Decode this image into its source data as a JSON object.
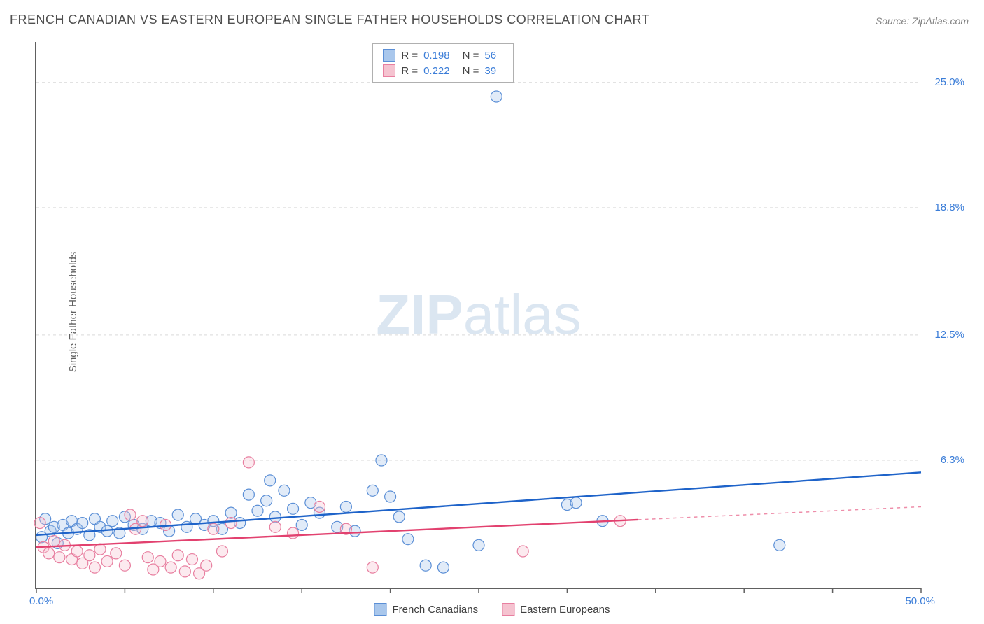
{
  "title": "FRENCH CANADIAN VS EASTERN EUROPEAN SINGLE FATHER HOUSEHOLDS CORRELATION CHART",
  "source_prefix": "Source: ",
  "source_link": "ZipAtlas.com",
  "y_axis_label": "Single Father Households",
  "watermark_bold": "ZIP",
  "watermark_light": "atlas",
  "chart": {
    "type": "scatter",
    "background_color": "#ffffff",
    "grid_color": "#d9d9d9",
    "axis_color": "#606060",
    "tick_color": "#606060",
    "label_color": "#3b7dd8",
    "xlim": [
      0,
      50
    ],
    "ylim": [
      0,
      27
    ],
    "x_tick_step": 5,
    "y_ticks": [
      6.3,
      12.5,
      18.8,
      25.0
    ],
    "x_labels": {
      "min": "0.0%",
      "max": "50.0%"
    },
    "y_labels": [
      "6.3%",
      "12.5%",
      "18.8%",
      "25.0%"
    ],
    "marker_radius": 8,
    "marker_fill_opacity": 0.35,
    "marker_stroke_width": 1.2,
    "trend_line_width": 2.4,
    "series": [
      {
        "name": "French Canadians",
        "color_fill": "#a9c7ec",
        "color_stroke": "#5b8fd6",
        "trend_color": "#1e63c9",
        "trend": {
          "x1": 0,
          "y1": 2.6,
          "x2": 50,
          "y2": 5.7,
          "solid_until_x": 50
        },
        "stats": {
          "R_label": "R  =",
          "R": "0.198",
          "N_label": "N  =",
          "N": "56"
        },
        "points": [
          {
            "x": 0.3,
            "y": 2.5
          },
          {
            "x": 0.5,
            "y": 3.4
          },
          {
            "x": 0.8,
            "y": 2.8
          },
          {
            "x": 1.0,
            "y": 3.0
          },
          {
            "x": 1.2,
            "y": 2.2
          },
          {
            "x": 1.5,
            "y": 3.1
          },
          {
            "x": 1.8,
            "y": 2.7
          },
          {
            "x": 2.0,
            "y": 3.3
          },
          {
            "x": 2.3,
            "y": 2.9
          },
          {
            "x": 2.6,
            "y": 3.2
          },
          {
            "x": 3.0,
            "y": 2.6
          },
          {
            "x": 3.3,
            "y": 3.4
          },
          {
            "x": 3.6,
            "y": 3.0
          },
          {
            "x": 4.0,
            "y": 2.8
          },
          {
            "x": 4.3,
            "y": 3.3
          },
          {
            "x": 4.7,
            "y": 2.7
          },
          {
            "x": 5.0,
            "y": 3.5
          },
          {
            "x": 5.5,
            "y": 3.1
          },
          {
            "x": 6.0,
            "y": 2.9
          },
          {
            "x": 6.5,
            "y": 3.3
          },
          {
            "x": 7.0,
            "y": 3.2
          },
          {
            "x": 7.5,
            "y": 2.8
          },
          {
            "x": 8.0,
            "y": 3.6
          },
          {
            "x": 8.5,
            "y": 3.0
          },
          {
            "x": 9.0,
            "y": 3.4
          },
          {
            "x": 9.5,
            "y": 3.1
          },
          {
            "x": 10.0,
            "y": 3.3
          },
          {
            "x": 10.5,
            "y": 2.9
          },
          {
            "x": 11.0,
            "y": 3.7
          },
          {
            "x": 11.5,
            "y": 3.2
          },
          {
            "x": 12.0,
            "y": 4.6
          },
          {
            "x": 12.5,
            "y": 3.8
          },
          {
            "x": 13.0,
            "y": 4.3
          },
          {
            "x": 13.2,
            "y": 5.3
          },
          {
            "x": 13.5,
            "y": 3.5
          },
          {
            "x": 14.0,
            "y": 4.8
          },
          {
            "x": 14.5,
            "y": 3.9
          },
          {
            "x": 15.0,
            "y": 3.1
          },
          {
            "x": 15.5,
            "y": 4.2
          },
          {
            "x": 16.0,
            "y": 3.7
          },
          {
            "x": 17.0,
            "y": 3.0
          },
          {
            "x": 17.5,
            "y": 4.0
          },
          {
            "x": 18.0,
            "y": 2.8
          },
          {
            "x": 19.0,
            "y": 4.8
          },
          {
            "x": 19.5,
            "y": 6.3
          },
          {
            "x": 20.0,
            "y": 4.5
          },
          {
            "x": 20.5,
            "y": 3.5
          },
          {
            "x": 21.0,
            "y": 2.4
          },
          {
            "x": 22.0,
            "y": 1.1
          },
          {
            "x": 23.0,
            "y": 1.0
          },
          {
            "x": 25.0,
            "y": 2.1
          },
          {
            "x": 26.0,
            "y": 24.3
          },
          {
            "x": 30.0,
            "y": 4.1
          },
          {
            "x": 30.5,
            "y": 4.2
          },
          {
            "x": 42.0,
            "y": 2.1
          },
          {
            "x": 32.0,
            "y": 3.3
          }
        ]
      },
      {
        "name": "Eastern Europeans",
        "color_fill": "#f5c3d0",
        "color_stroke": "#e87fa0",
        "trend_color": "#e2416f",
        "trend": {
          "x1": 0,
          "y1": 2.0,
          "x2": 50,
          "y2": 4.0,
          "solid_until_x": 34
        },
        "stats": {
          "R_label": "R  =",
          "R": "0.222",
          "N_label": "N  =",
          "N": "39"
        },
        "points": [
          {
            "x": 0.2,
            "y": 3.2
          },
          {
            "x": 0.4,
            "y": 2.0
          },
          {
            "x": 0.7,
            "y": 1.7
          },
          {
            "x": 1.0,
            "y": 2.3
          },
          {
            "x": 1.3,
            "y": 1.5
          },
          {
            "x": 1.6,
            "y": 2.1
          },
          {
            "x": 2.0,
            "y": 1.4
          },
          {
            "x": 2.3,
            "y": 1.8
          },
          {
            "x": 2.6,
            "y": 1.2
          },
          {
            "x": 3.0,
            "y": 1.6
          },
          {
            "x": 3.3,
            "y": 1.0
          },
          {
            "x": 3.6,
            "y": 1.9
          },
          {
            "x": 4.0,
            "y": 1.3
          },
          {
            "x": 4.5,
            "y": 1.7
          },
          {
            "x": 5.0,
            "y": 1.1
          },
          {
            "x": 5.3,
            "y": 3.6
          },
          {
            "x": 5.6,
            "y": 2.9
          },
          {
            "x": 6.0,
            "y": 3.3
          },
          {
            "x": 6.3,
            "y": 1.5
          },
          {
            "x": 6.6,
            "y": 0.9
          },
          {
            "x": 7.0,
            "y": 1.3
          },
          {
            "x": 7.3,
            "y": 3.1
          },
          {
            "x": 7.6,
            "y": 1.0
          },
          {
            "x": 8.0,
            "y": 1.6
          },
          {
            "x": 8.4,
            "y": 0.8
          },
          {
            "x": 8.8,
            "y": 1.4
          },
          {
            "x": 9.2,
            "y": 0.7
          },
          {
            "x": 9.6,
            "y": 1.1
          },
          {
            "x": 10.0,
            "y": 2.9
          },
          {
            "x": 10.5,
            "y": 1.8
          },
          {
            "x": 11.0,
            "y": 3.2
          },
          {
            "x": 12.0,
            "y": 6.2
          },
          {
            "x": 13.5,
            "y": 3.0
          },
          {
            "x": 14.5,
            "y": 2.7
          },
          {
            "x": 16.0,
            "y": 4.0
          },
          {
            "x": 17.5,
            "y": 2.9
          },
          {
            "x": 19.0,
            "y": 1.0
          },
          {
            "x": 27.5,
            "y": 1.8
          },
          {
            "x": 33.0,
            "y": 3.3
          }
        ]
      }
    ]
  },
  "bottom_legend": [
    {
      "label": "French Canadians",
      "fill": "#a9c7ec",
      "stroke": "#5b8fd6"
    },
    {
      "label": "Eastern Europeans",
      "fill": "#f5c3d0",
      "stroke": "#e87fa0"
    }
  ]
}
